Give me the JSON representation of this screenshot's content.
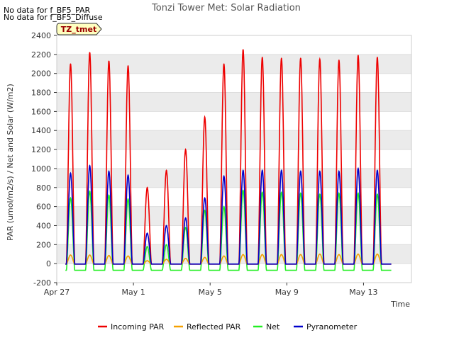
{
  "header": {
    "nodata_lines": [
      "No data for f_BF5_PAR",
      "No data for f_BF5_Diffuse"
    ]
  },
  "badge": {
    "label": "TZ_tmet"
  },
  "colors": {
    "incoming_par": "#ee0000",
    "reflected_par": "#f5a000",
    "net": "#22ee22",
    "pyranometer": "#0000cc",
    "band": "#ebebeb"
  },
  "chart_data": {
    "type": "line",
    "title": "Tonzi Tower Met: Solar Radiation",
    "xlabel": "Time",
    "ylabel": "PAR (umol/m2/s) / Net and Solar (W/m2)",
    "xlim": [
      0,
      18.5
    ],
    "ylim": [
      -200,
      2400
    ],
    "yticks": [
      -200,
      0,
      200,
      400,
      600,
      800,
      1000,
      1200,
      1400,
      1600,
      1800,
      2000,
      2200,
      2400
    ],
    "xticks": [
      {
        "day": 0,
        "label": "Apr 27"
      },
      {
        "day": 4,
        "label": "May 1"
      },
      {
        "day": 8,
        "label": "May 5"
      },
      {
        "day": 12,
        "label": "May 9"
      },
      {
        "day": 16,
        "label": "May 13"
      }
    ],
    "grid": "horizontal bands",
    "legend_position": "bottom",
    "days": [
      0,
      1,
      2,
      3,
      4,
      5,
      6,
      7,
      8,
      9,
      10,
      11,
      12,
      13,
      14,
      15,
      16
    ],
    "series": [
      {
        "key": "incoming_par",
        "name": "Incoming PAR",
        "peaks": [
          2100,
          2220,
          2130,
          2080,
          800,
          980,
          1200,
          1540,
          2100,
          2250,
          2170,
          2160,
          2160,
          2150,
          2140,
          2190,
          2170
        ]
      },
      {
        "key": "reflected_par",
        "name": "Reflected PAR",
        "peaks": [
          90,
          90,
          85,
          80,
          30,
          45,
          55,
          65,
          80,
          95,
          95,
          95,
          95,
          100,
          95,
          100,
          100
        ]
      },
      {
        "key": "net",
        "name": "Net",
        "peaks": [
          690,
          760,
          720,
          680,
          180,
          200,
          380,
          560,
          600,
          770,
          750,
          750,
          740,
          730,
          740,
          740,
          730
        ],
        "night": -70
      },
      {
        "key": "pyranometer",
        "name": "Pyranometer",
        "peaks": [
          950,
          1030,
          970,
          930,
          320,
          400,
          480,
          690,
          920,
          980,
          980,
          980,
          970,
          970,
          970,
          1000,
          980
        ]
      }
    ]
  }
}
